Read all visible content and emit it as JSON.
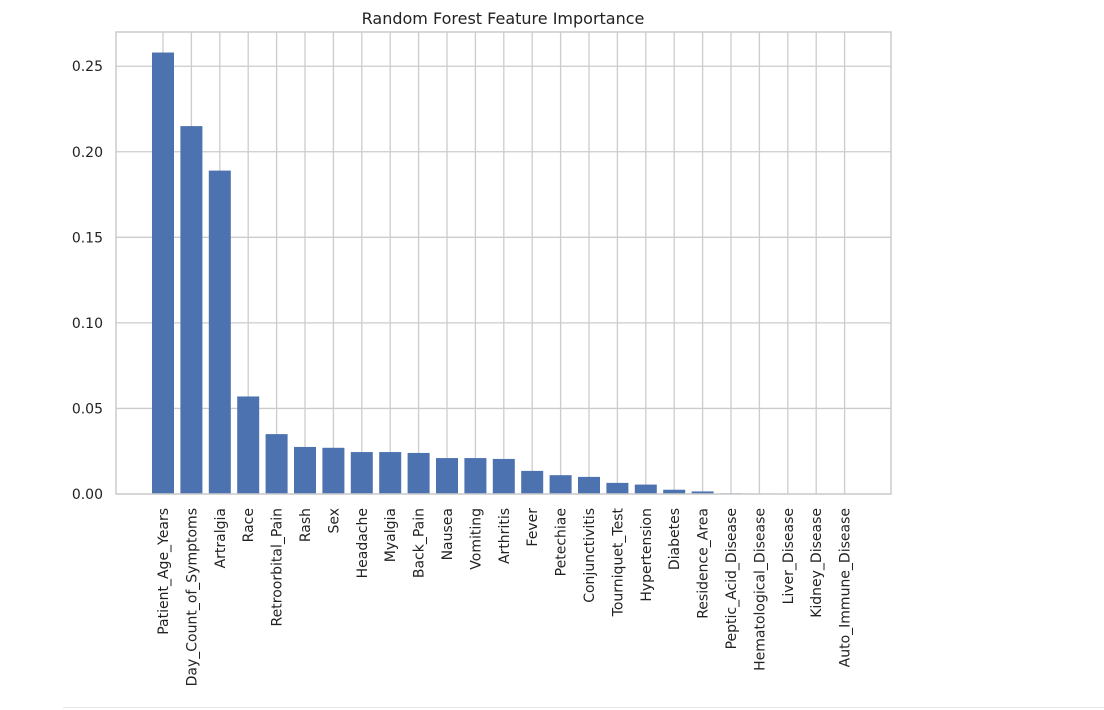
{
  "chart_data": {
    "type": "bar",
    "title": "Random Forest Feature Importance",
    "xlabel": "",
    "ylabel": "",
    "ylim": [
      0,
      0.27
    ],
    "yticks": [
      0.0,
      0.05,
      0.1,
      0.15,
      0.2,
      0.25
    ],
    "ytick_labels": [
      "0.00",
      "0.05",
      "0.10",
      "0.15",
      "0.20",
      "0.25"
    ],
    "grid": true,
    "bar_color": "#4c72b0",
    "grid_color": "#cccccc",
    "categories": [
      "Patient_Age_Years",
      "Day_Count_of_Symptoms",
      "Artralgia",
      "Race",
      "Retroorbital_Pain",
      "Rash",
      "Sex",
      "Headache",
      "Myalgia",
      "Back_Pain",
      "Nausea",
      "Vomiting",
      "Arthritis",
      "Fever",
      "Petechiae",
      "Conjunctivitis",
      "Tourniquet_Test",
      "Hypertension",
      "Diabetes",
      "Residence_Area",
      "Peptic_Acid_Disease",
      "Hematological_Disease",
      "Liver_Disease",
      "Kidney_Disease",
      "Auto_Immune_Disease"
    ],
    "values": [
      0.258,
      0.215,
      0.189,
      0.057,
      0.035,
      0.0275,
      0.027,
      0.0245,
      0.0245,
      0.024,
      0.021,
      0.021,
      0.0205,
      0.0135,
      0.011,
      0.01,
      0.0065,
      0.0055,
      0.0025,
      0.0015,
      0.0004,
      0.0003,
      0.0002,
      0.0002,
      0.0001
    ]
  }
}
